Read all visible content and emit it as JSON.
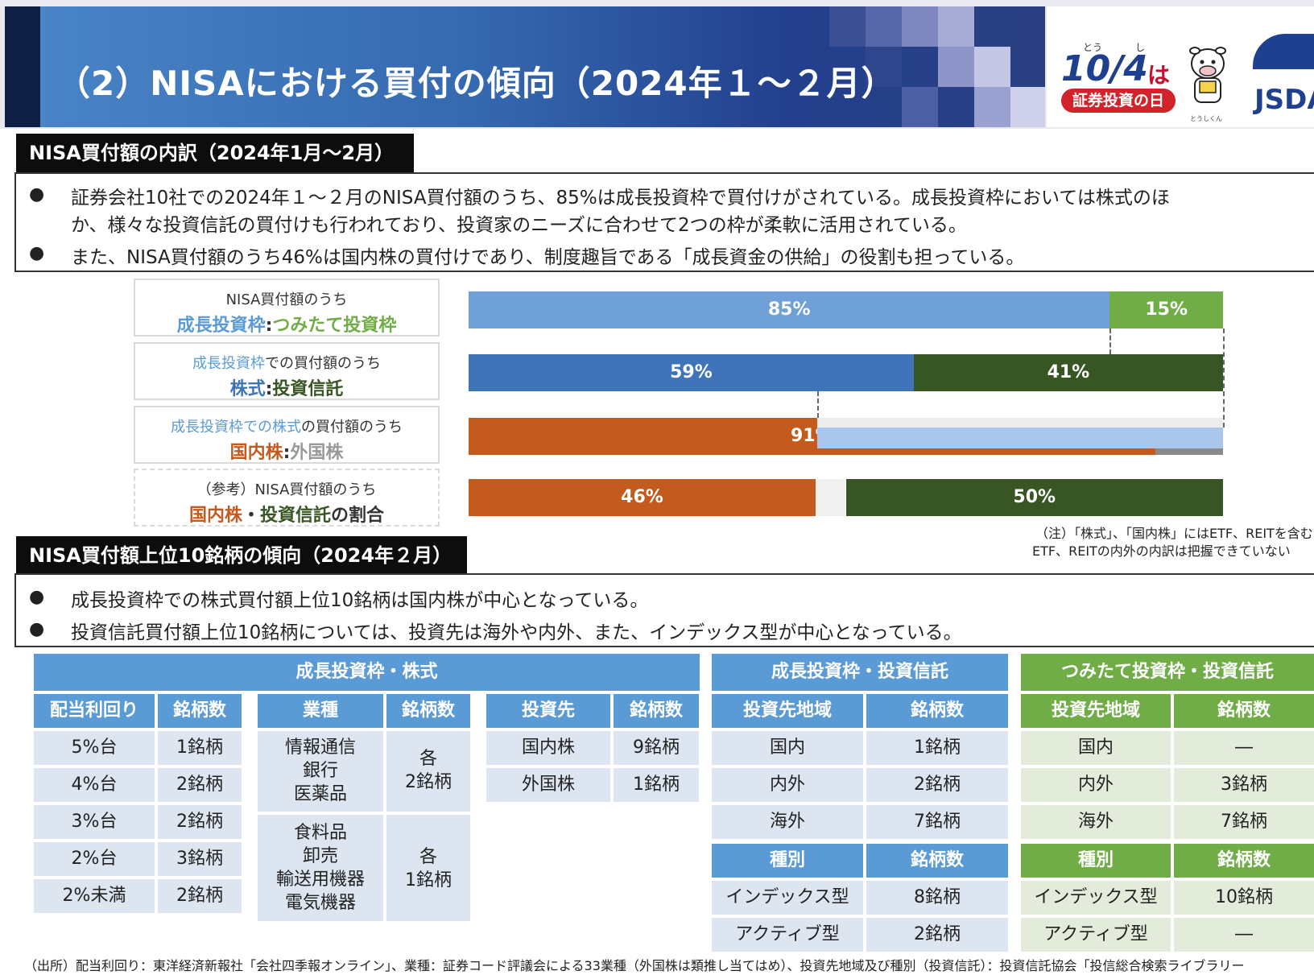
{
  "header": {
    "title": "（2）NISAにおける買付の傾向（2024年１～２月）",
    "logo_date": "10/4",
    "logo_ha": "は",
    "logo_ruby_to": "とう",
    "logo_ruby_shi": "し",
    "logo_day": "証券投資の日",
    "logo_mascot": "とうしくん",
    "logo_org": "JSDA"
  },
  "section1": {
    "heading": "NISA買付額の内訳（2024年1月～2月）",
    "bullet1_line1": "証券会社10社での2024年１～２月のNISA買付額のうち、85%は成長投資枠で買付けがされている。成長投資枠においては株式のほ",
    "bullet1_line2": "か、様々な投資信託の買付けも行われており、投資家のニーズに合わせて2つの枠が柔軟に活用されている。",
    "bullet2": "また、NISA買付額のうち46%は国内株の買付けであり、制度趣旨である「成長資金の供給」の役割も担っている。",
    "bullet_mark": "●"
  },
  "rows": [
    {
      "l1a": "NISA買付額のうち",
      "l1b": "",
      "l2a": "成長投資枠",
      "sep": ":",
      "l2b": "つみたて投資枠",
      "l2c": ""
    },
    {
      "l1a": "成長投資枠",
      "l1b": "での買付額のうち",
      "l2a": "株式",
      "sep": ":",
      "l2b": "投資信託",
      "l2c": ""
    },
    {
      "l1a": "成長投資枠での株式",
      "l1b": "の買付額のうち",
      "l2a": "国内株",
      "sep": ":",
      "l2b": "外国株",
      "l2c": ""
    },
    {
      "l1a": "（参考）NISA買付額のうち",
      "l1b": "",
      "l2a": "国内株",
      "sep": "・",
      "l2b": "投資信託",
      "l2c": "の割合"
    }
  ],
  "chart_data": {
    "type": "bar",
    "orientation": "horizontal-stacked",
    "bars": [
      {
        "segments": [
          {
            "label": "85%",
            "value": 85,
            "color": "#6fa1d8"
          },
          {
            "label": "15%",
            "value": 15,
            "color": "#70ad47"
          }
        ]
      },
      {
        "segments": [
          {
            "label": "59%",
            "value": 59,
            "color": "#3f74b9"
          },
          {
            "label": "41%",
            "value": 41,
            "color": "#375623"
          }
        ]
      },
      {
        "segments": [
          {
            "label": "91%",
            "value": 91,
            "color": "#c55a1e"
          },
          {
            "label": "9%",
            "value": 9,
            "color": "#8a8a8a"
          }
        ]
      },
      {
        "segments": [
          {
            "label": "46%",
            "value": 46,
            "color": "#c55a1e"
          },
          {
            "label": "50%",
            "value": 50,
            "color": "#375623"
          }
        ]
      }
    ],
    "note_line1": "（注）「株式」、「国内株」にはETF、REITを含む",
    "note_line2": "ETF、REITの内外の内訳は把握できていない"
  },
  "section2": {
    "heading": "NISA買付額上位10銘柄の傾向（2024年２月）",
    "bullet1": "成長投資枠での株式買付額上位10銘柄は国内株が中心となっている。",
    "bullet2": "投資信託買付額上位10銘柄については、投資先は海外や内外、また、インデックス型が中心となっている。"
  },
  "tables": {
    "stock_title": "成長投資枠・株式",
    "trust_title": "成長投資枠・投資信託",
    "tsumitate_title": "つみたて投資枠・投資信託",
    "dividend": {
      "h1": "配当利回り",
      "h2": "銘柄数",
      "rows": [
        [
          "5%台",
          "1銘柄"
        ],
        [
          "4%台",
          "2銘柄"
        ],
        [
          "3%台",
          "2銘柄"
        ],
        [
          "2%台",
          "3銘柄"
        ],
        [
          "2%未満",
          "2銘柄"
        ]
      ]
    },
    "industry": {
      "h1": "業種",
      "h2": "銘柄数",
      "g1": [
        "情報通信",
        "銀行",
        "医薬品"
      ],
      "g1v1": "各",
      "g1v2": "2銘柄",
      "g2": [
        "食料品",
        "卸売",
        "輸送用機器",
        "電気機器"
      ],
      "g2v1": "各",
      "g2v2": "1銘柄"
    },
    "dest": {
      "h1": "投資先",
      "h2": "銘柄数",
      "rows": [
        [
          "国内株",
          "9銘柄"
        ],
        [
          "外国株",
          "1銘柄"
        ]
      ]
    },
    "trust": {
      "h1": "投資先地域",
      "h2": "銘柄数",
      "rows": [
        [
          "国内",
          "1銘柄"
        ],
        [
          "内外",
          "2銘柄"
        ],
        [
          "海外",
          "7銘柄"
        ]
      ],
      "k1": "種別",
      "k2": "銘柄数",
      "krows": [
        [
          "インデックス型",
          "8銘柄"
        ],
        [
          "アクティブ型",
          "2銘柄"
        ]
      ]
    },
    "tsumitate": {
      "h1": "投資先地域",
      "h2": "銘柄数",
      "rows": [
        [
          "国内",
          "―"
        ],
        [
          "内外",
          "3銘柄"
        ],
        [
          "海外",
          "7銘柄"
        ]
      ],
      "k1": "種別",
      "k2": "銘柄数",
      "krows": [
        [
          "インデックス型",
          "10銘柄"
        ],
        [
          "アクティブ型",
          "―"
        ]
      ]
    }
  },
  "source": "（出所）配当利回り：東洋経済新報社「会社四季報オンライン」、業種：証券コード評議会による33業種（外国株は類推し当てはめ）、投資先地域及び種別（投資信託）：投資信託協会「投信総合検索ライブラリー"
}
